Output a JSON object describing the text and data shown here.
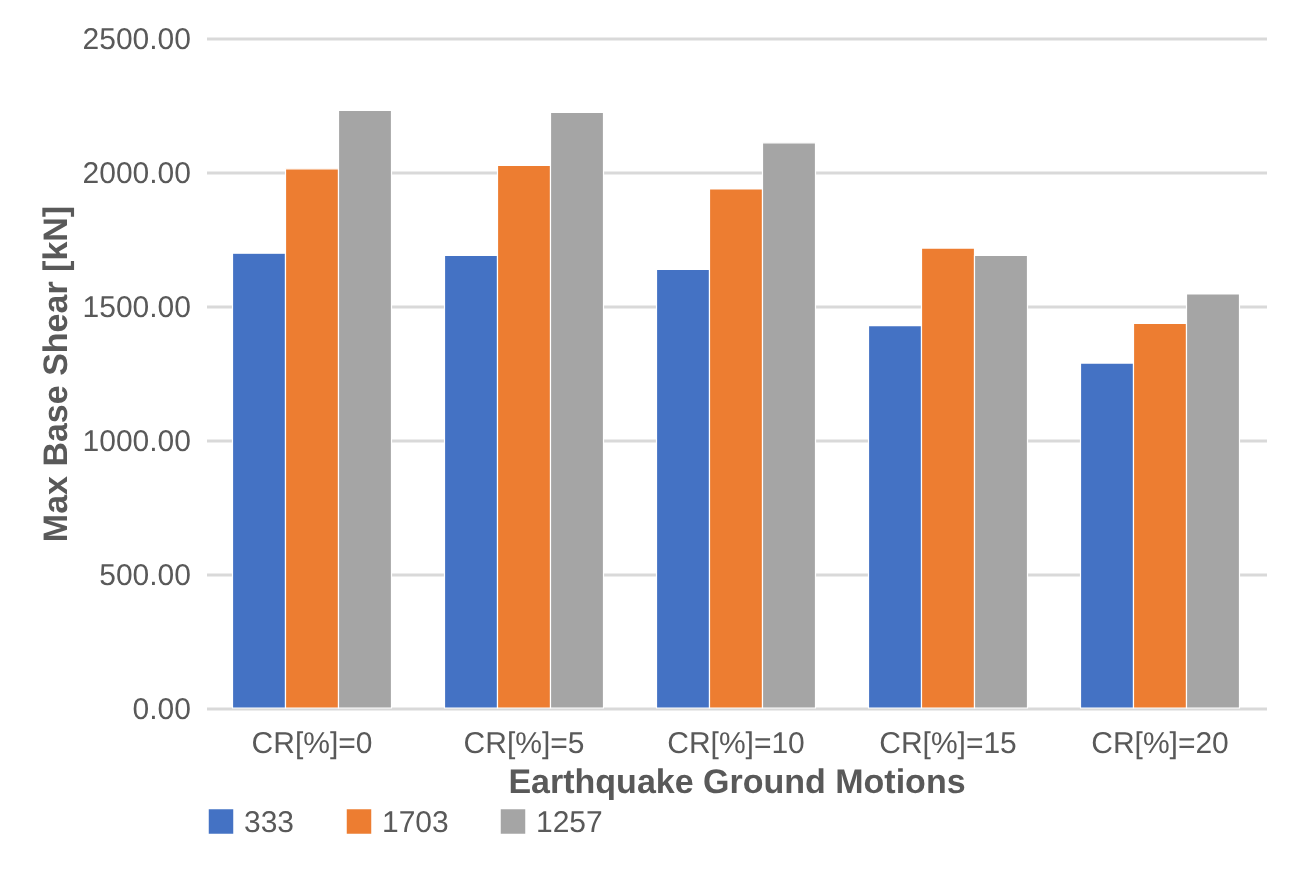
{
  "chart_data": {
    "type": "bar",
    "xlabel": "Earthquake Ground Motions",
    "ylabel": "Max Base Shear [kN]",
    "categories": [
      "CR[%]=0",
      "CR[%]=5",
      "CR[%]=10",
      "CR[%]=15",
      "CR[%]=20"
    ],
    "series": [
      {
        "name": "333",
        "color": "#4472c4",
        "values": [
          1697,
          1689,
          1637,
          1427,
          1287
        ]
      },
      {
        "name": "1703",
        "color": "#ed7d31",
        "values": [
          2012,
          2025,
          1937,
          1716,
          1435
        ]
      },
      {
        "name": "1257",
        "color": "#a5a5a5",
        "values": [
          2230,
          2222,
          2109,
          1689,
          1545
        ]
      }
    ],
    "ylim": [
      0,
      2500
    ],
    "yticks": [
      {
        "value": 0,
        "label": "0.00"
      },
      {
        "value": 500,
        "label": "500.00"
      },
      {
        "value": 1000,
        "label": "1000.00"
      },
      {
        "value": 1500,
        "label": "1500.00"
      },
      {
        "value": 2000,
        "label": "2000.00"
      },
      {
        "value": 2500,
        "label": "2500.00"
      }
    ],
    "grid": "y",
    "legend": "bottom"
  }
}
